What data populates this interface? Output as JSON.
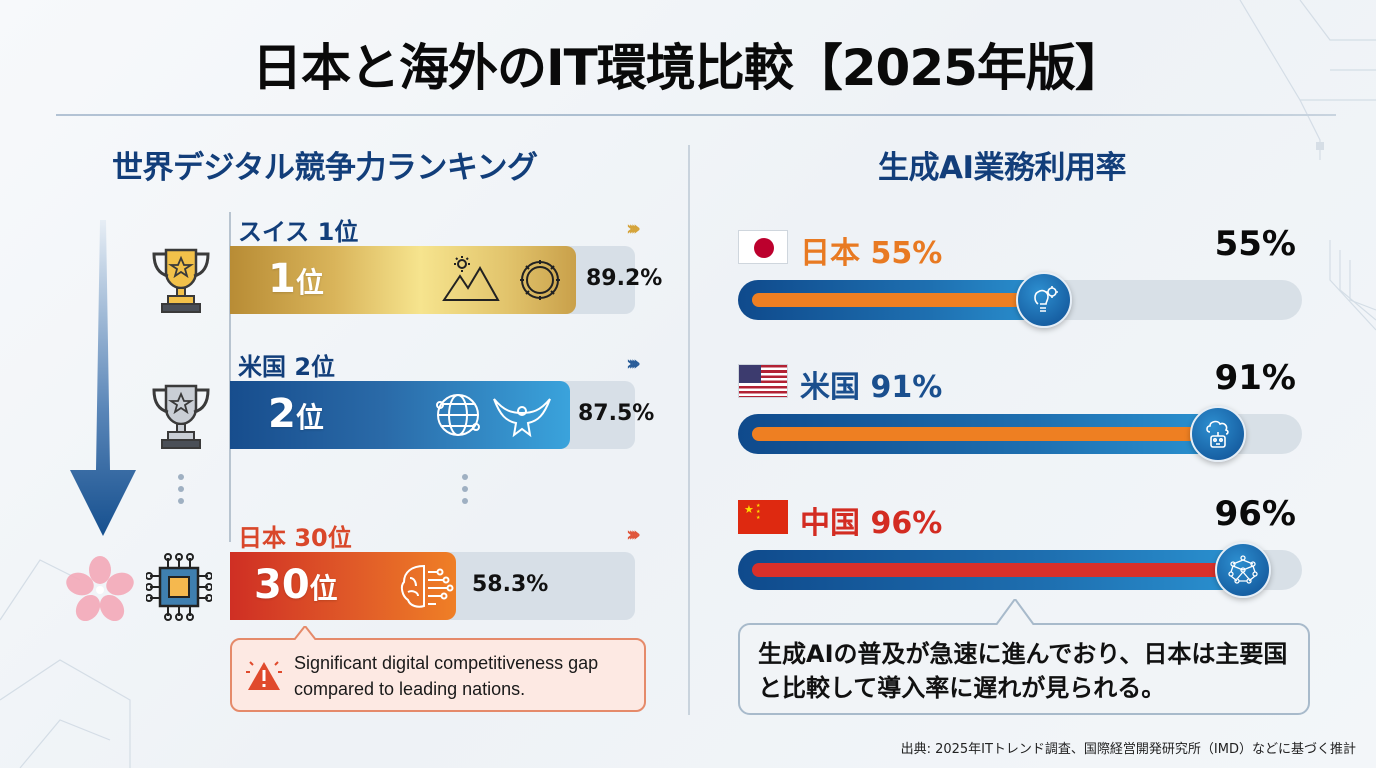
{
  "title": "日本と海外のIT環境比較【2025年版】",
  "left_section": {
    "title": "世界デジタル競争力ランキング",
    "rows": [
      {
        "country_label": "スイス 1位",
        "rank": "1",
        "rank_suffix": "位",
        "score": "89.2%",
        "score_value": 89.2,
        "icons": [
          "mountain-sun-icon",
          "gear-innovation-icon"
        ],
        "trophy": "gold-trophy-icon",
        "color": "#c99a3a"
      },
      {
        "country_label": "米国 2位",
        "rank": "2",
        "rank_suffix": "位",
        "score": "87.5%",
        "score_value": 87.5,
        "icons": [
          "globe-network-icon",
          "eagle-icon"
        ],
        "trophy": "silver-trophy-icon",
        "color": "#1f5ea0"
      },
      {
        "country_label": "日本 30位",
        "rank": "30",
        "rank_suffix": "位",
        "score": "58.3%",
        "score_value": 58.3,
        "icons": [
          "ai-brain-icon"
        ],
        "trophy": "cherry-blossom-chip-icon",
        "color": "#d9472a"
      }
    ],
    "callout": "Significant digital competitiveness gap compared to leading nations."
  },
  "right_section": {
    "title": "生成AI業務利用率",
    "rows": [
      {
        "flag": "japan-flag",
        "country": "日本",
        "value_label": "55%",
        "value": 55,
        "color": "#e87a22",
        "bar_color": "#ee7f22",
        "knob_icon": "lightbulb-gear-icon"
      },
      {
        "flag": "usa-flag",
        "country": "米国",
        "value_label": "91%",
        "value": 91,
        "color": "#1a4f8e",
        "bar_color": "#ee7f22",
        "knob_icon": "cloud-robot-icon"
      },
      {
        "flag": "china-flag",
        "country": "中国",
        "value_label": "96%",
        "value": 96,
        "color": "#d32c22",
        "bar_color": "#d9302a",
        "knob_icon": "neural-network-icon"
      }
    ],
    "callout": "生成AIの普及が急速に進んでおり、日本は主要国と比較して導入率に遅れが見られる。"
  },
  "source": "出典: 2025年ITトレンド調査、国際経営開発研究所（IMD）などに基づく推計",
  "chart_data": [
    {
      "type": "bar",
      "title": "世界デジタル競争力ランキング",
      "categories": [
        "スイス 1位",
        "米国 2位",
        "日本 30位"
      ],
      "values": [
        89.2,
        87.5,
        58.3
      ],
      "ranks": [
        1,
        2,
        30
      ],
      "xlabel": "",
      "ylabel": "",
      "ylim": [
        0,
        100
      ]
    },
    {
      "type": "bar",
      "title": "生成AI業務利用率",
      "categories": [
        "日本",
        "米国",
        "中国"
      ],
      "values": [
        55,
        91,
        96
      ],
      "xlabel": "",
      "ylabel": "%",
      "ylim": [
        0,
        100
      ]
    }
  ]
}
